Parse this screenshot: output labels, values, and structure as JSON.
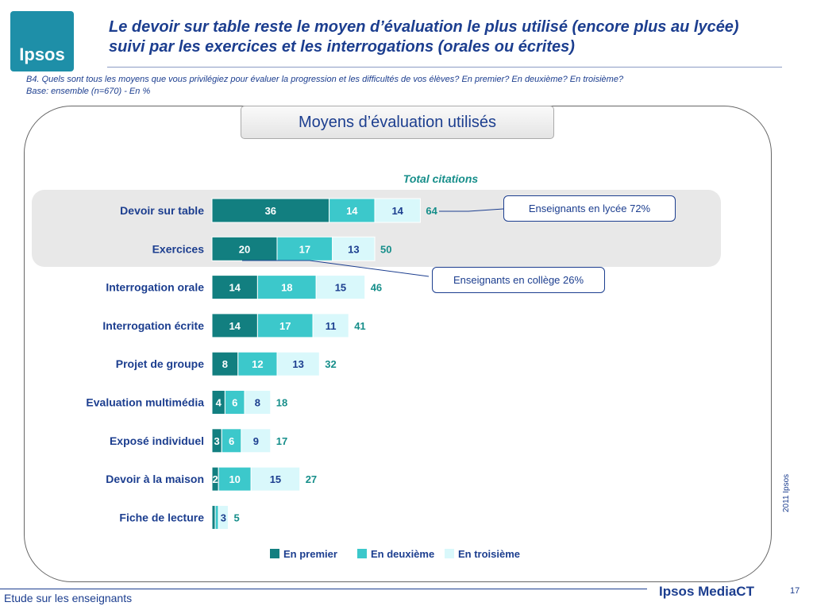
{
  "logo_text": "Ipsos",
  "title": "Le devoir sur table reste le moyen d’évaluation le plus utilisé (encore plus au lycée) suivi par les exercices et les interrogations (orales ou écrites)",
  "question": "B4. Quels sont tous les moyens que vous privilégiez pour évaluer la progression et les difficultés de vos élèves? En premier? En deuxième? En troisième?",
  "base": "Base: ensemble (n=670) - En %",
  "panel_title": "Moyens d’évaluation utilisés",
  "callouts": {
    "lycee": "Enseignants en lycée  72%",
    "college": "Enseignants en collège 26%"
  },
  "side_copyright": "2011 Ipsos",
  "footer": {
    "left": "Etude sur les enseignants",
    "brand": "Ipsos MediaCT",
    "page": "17"
  },
  "colors": {
    "premier": "#127f80",
    "deuxieme": "#3cc8cb",
    "troisieme": "#d9f8fb",
    "total_text": "#168e8a",
    "label_text": "#1c3e8f"
  },
  "chart_data": {
    "type": "bar",
    "orientation": "horizontal",
    "stacked": true,
    "total_header": "Total citations",
    "categories": [
      "Devoir sur table",
      "Exercices",
      "Interrogation orale",
      "Interrogation écrite",
      "Projet de groupe",
      "Evaluation multimédia",
      "Exposé individuel",
      "Devoir à la maison",
      "Fiche de lecture"
    ],
    "series": [
      {
        "name": "En premier",
        "values": [
          36,
          20,
          14,
          14,
          8,
          4,
          3,
          2,
          1
        ]
      },
      {
        "name": "En deuxième",
        "values": [
          14,
          17,
          18,
          17,
          12,
          6,
          6,
          10,
          1
        ]
      },
      {
        "name": "En troisième",
        "values": [
          14,
          13,
          15,
          11,
          13,
          8,
          9,
          15,
          3
        ]
      }
    ],
    "labels": [
      [
        "36",
        "14",
        "14"
      ],
      [
        "20",
        "17",
        "13"
      ],
      [
        "14",
        "18",
        "15"
      ],
      [
        "14",
        "17",
        "11"
      ],
      [
        "8",
        "12",
        "13"
      ],
      [
        "4",
        "6",
        "8"
      ],
      [
        "3",
        "6",
        "9"
      ],
      [
        "2",
        "10",
        "15"
      ],
      [
        "",
        "",
        "3"
      ]
    ],
    "totals": [
      64,
      50,
      46,
      41,
      32,
      18,
      17,
      27,
      5
    ],
    "xlim": [
      0,
      100
    ],
    "grid": false,
    "legend": "bottom"
  }
}
